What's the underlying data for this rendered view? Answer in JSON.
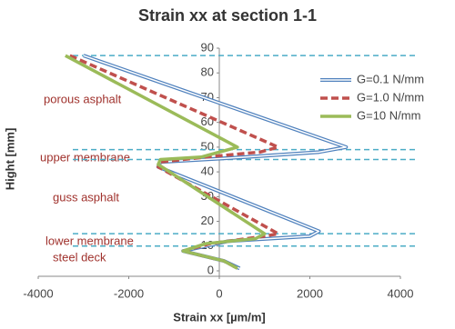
{
  "chart_data": {
    "type": "line",
    "title": "Strain xx at section 1-1",
    "x_label": "Strain xx [µm/m]",
    "y_label": "Hight [mm]",
    "xlim": [
      -4000,
      4000
    ],
    "xticks": [
      -4000,
      -2000,
      0,
      2000,
      4000
    ],
    "ylim": [
      0,
      90
    ],
    "yticks": [
      0,
      10,
      20,
      30,
      40,
      50,
      60,
      70,
      80,
      90
    ],
    "grid": false,
    "legend": "upper right",
    "hlines": [
      87,
      49,
      45,
      15,
      10
    ],
    "hline_color": "#4bacc6",
    "annotations": [
      "porous asphalt",
      "upper membrane",
      "guss asphalt",
      "lower membrane",
      "steel deck"
    ],
    "series": [
      {
        "name": "G=0.1 N/mm",
        "color": "#4f81bd",
        "x": [
          -3000,
          2800,
          2200,
          600,
          -1300,
          -1350,
          2200,
          2000,
          200,
          -800,
          100,
          450
        ],
        "values": [
          87,
          50,
          48,
          46,
          44,
          42,
          16,
          14,
          12,
          8,
          4,
          1
        ]
      },
      {
        "name": "G=1.0 N/mm",
        "color": "#c0504d",
        "x": [
          -3300,
          1300,
          900,
          -300,
          -1300,
          -1350,
          1300,
          1000,
          -200,
          -800,
          100,
          400
        ],
        "values": [
          87,
          50,
          48,
          46,
          44,
          42,
          15,
          14,
          11,
          8,
          4,
          1
        ]
      },
      {
        "name": "G=10 N/mm",
        "color": "#9bbb59",
        "x": [
          -3400,
          400,
          0,
          -400,
          -1300,
          -1350,
          1000,
          800,
          -300,
          -800,
          100,
          400
        ],
        "values": [
          87,
          50,
          48,
          46,
          45,
          43,
          15,
          13,
          11,
          8,
          4,
          1
        ]
      }
    ]
  }
}
